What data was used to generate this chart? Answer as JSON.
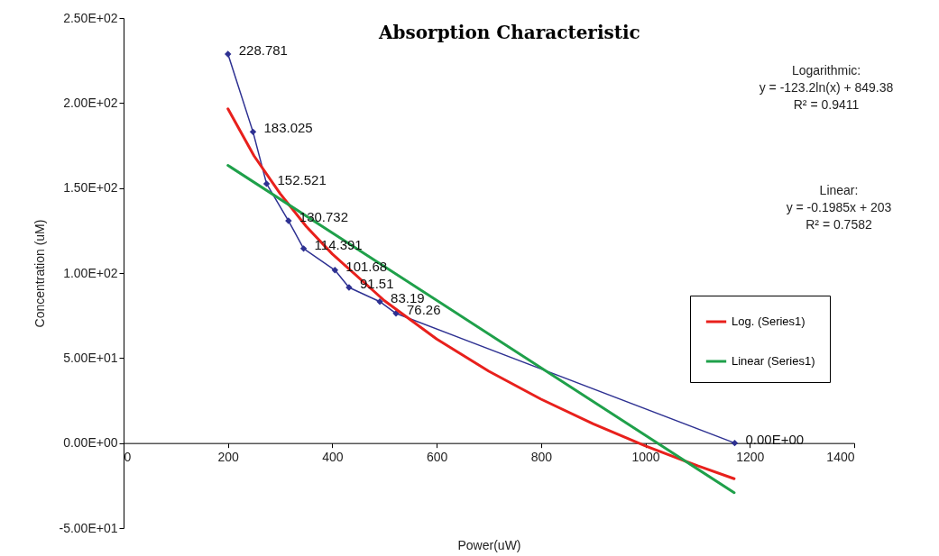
{
  "chart_data": {
    "type": "line",
    "title": "Absorption Characteristic",
    "xlabel": "Power(uW)",
    "ylabel": "Concentration (uM)",
    "xlim": [
      0,
      1400
    ],
    "xticks": [
      0,
      200,
      400,
      600,
      800,
      1000,
      1200,
      1400
    ],
    "ylim": [
      -50,
      250
    ],
    "yticks": [
      {
        "value": -50,
        "label": "-5.00E+01"
      },
      {
        "value": 0,
        "label": "0.00E+00"
      },
      {
        "value": 50,
        "label": "5.00E+01"
      },
      {
        "value": 100,
        "label": "1.00E+02"
      },
      {
        "value": 150,
        "label": "1.50E+02"
      },
      {
        "value": 200,
        "label": "2.00E+02"
      },
      {
        "value": 250,
        "label": "2.50E+02"
      }
    ],
    "grid": false,
    "legend": "right",
    "series": [
      {
        "color": "#2e3192",
        "marker": "diamond",
        "x": [
          200,
          248,
          274,
          316,
          345,
          405,
          432,
          491,
          522,
          1171
        ],
        "values": [
          228.781,
          183.025,
          152.521,
          130.732,
          114.391,
          101.68,
          91.51,
          83.19,
          76.26,
          0
        ],
        "value_labels": [
          "228.781",
          "183.025",
          "152.521",
          "130.732",
          "114.391",
          "101.68",
          "91.51",
          "83.19",
          "76.26",
          "0.00E+00"
        ]
      },
      {
        "name": "Log. (Series1)",
        "color": "#e8201c",
        "x": [
          200,
          250,
          300,
          350,
          400,
          500,
          600,
          700,
          800,
          900,
          1000,
          1100,
          1170
        ],
        "values": [
          196.6,
          168.9,
          146.7,
          127.4,
          111.2,
          83.7,
          61.2,
          42.2,
          25.8,
          11.3,
          -1.7,
          -13.4,
          -21.0
        ]
      },
      {
        "name": "Linear (Series1)",
        "color": "#1fa04a",
        "x": [
          200,
          1170
        ],
        "values": [
          163.3,
          -29.2
        ]
      }
    ],
    "annotations": [
      "Logarithmic:\ny = -123.2ln(x) + 849.38\nR² = 0.9411",
      "Linear:\ny = -0.1985x + 203\nR² = 0.7582"
    ]
  }
}
